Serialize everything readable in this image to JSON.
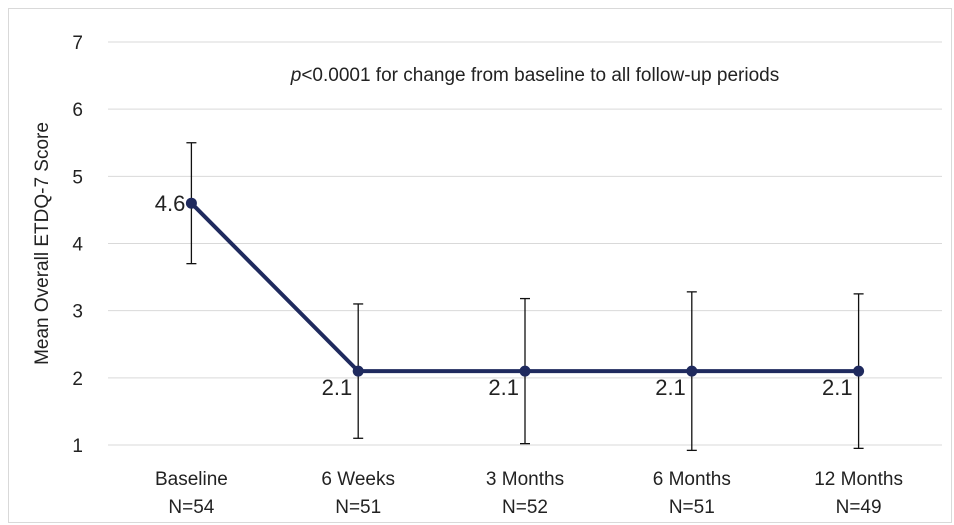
{
  "chart_data": {
    "type": "line",
    "categories": [
      "Baseline",
      "6 Weeks",
      "3 Months",
      "6 Months",
      "12 Months"
    ],
    "sample_sizes": [
      "N=54",
      "N=51",
      "N=52",
      "N=51",
      "N=49"
    ],
    "series": [
      {
        "values": [
          4.6,
          2.1,
          2.1,
          2.1,
          2.1
        ],
        "data_labels": [
          "4.6",
          "2.1",
          "2.1",
          "2.1",
          "2.1"
        ],
        "error_upper": [
          5.5,
          3.1,
          3.18,
          3.28,
          3.25
        ],
        "error_lower": [
          3.7,
          1.1,
          1.02,
          0.92,
          0.95
        ],
        "color": "#1f2a5e"
      }
    ],
    "ylabel": "Mean Overall ETDQ-7 Score",
    "ylim": [
      1,
      7
    ],
    "yticks": [
      "1",
      "2",
      "3",
      "4",
      "5",
      "6",
      "7"
    ],
    "annotation": {
      "italic": "p",
      "text": "<0.0001 for change from baseline to all follow-up periods"
    },
    "grid": "horizontal",
    "gridline_color": "#d9d9d9"
  }
}
